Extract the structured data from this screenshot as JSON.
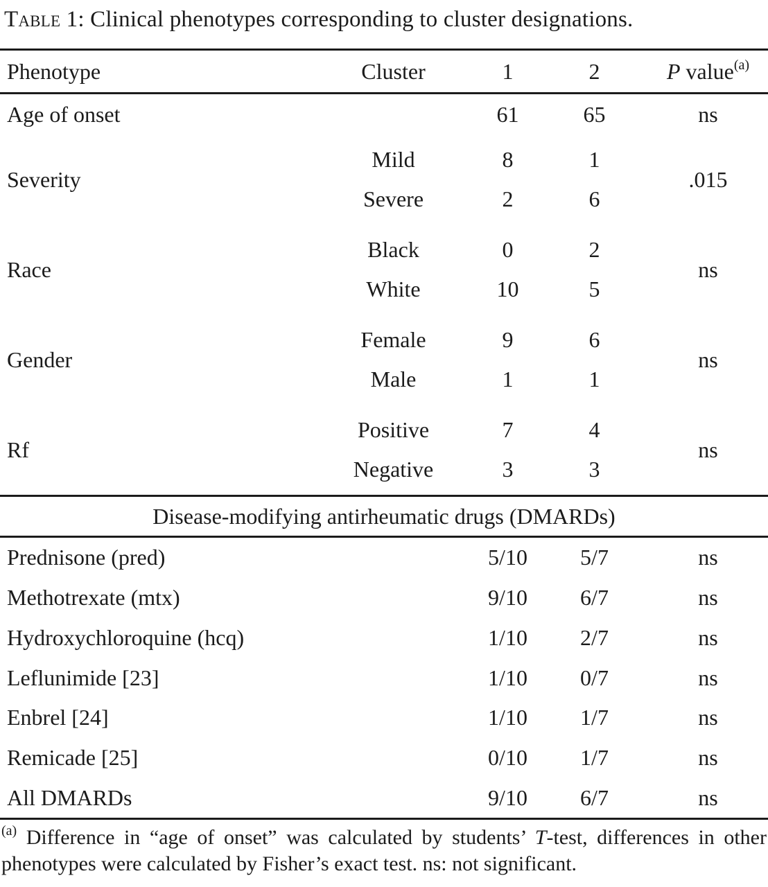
{
  "title": {
    "prefix": "Table 1:",
    "rest": " Clinical phenotypes corresponding to cluster designations."
  },
  "header": {
    "phenotype": "Phenotype",
    "cluster": "Cluster",
    "col1": "1",
    "col2": "2",
    "p_italic": "P",
    "p_rest": " value",
    "p_sup": "(a)"
  },
  "rows": {
    "age": {
      "phenotype": "Age of onset",
      "v1": "61",
      "v2": "65",
      "p": "ns"
    },
    "groups": [
      {
        "phenotype": "Severity",
        "sub1": {
          "label": "Mild",
          "v1": "8",
          "v2": "1"
        },
        "sub2": {
          "label": "Severe",
          "v1": "2",
          "v2": "6"
        },
        "p": ".015"
      },
      {
        "phenotype": "Race",
        "sub1": {
          "label": "Black",
          "v1": "0",
          "v2": "2"
        },
        "sub2": {
          "label": "White",
          "v1": "10",
          "v2": "5"
        },
        "p": "ns"
      },
      {
        "phenotype": "Gender",
        "sub1": {
          "label": "Female",
          "v1": "9",
          "v2": "6"
        },
        "sub2": {
          "label": "Male",
          "v1": "1",
          "v2": "1"
        },
        "p": "ns"
      },
      {
        "phenotype": "Rf",
        "sub1": {
          "label": "Positive",
          "v1": "7",
          "v2": "4"
        },
        "sub2": {
          "label": "Negative",
          "v1": "3",
          "v2": "3"
        },
        "p": "ns"
      }
    ],
    "section_header": "Disease-modifying antirheumatic drugs (DMARDs)",
    "dmards": [
      {
        "phenotype": "Prednisone (pred)",
        "v1": "5/10",
        "v2": "5/7",
        "p": "ns"
      },
      {
        "phenotype": "Methotrexate (mtx)",
        "v1": "9/10",
        "v2": "6/7",
        "p": "ns"
      },
      {
        "phenotype": "Hydroxychloroquine (hcq)",
        "v1": "1/10",
        "v2": "2/7",
        "p": "ns"
      },
      {
        "phenotype": "Leflunimide [23]",
        "v1": "1/10",
        "v2": "0/7",
        "p": "ns"
      },
      {
        "phenotype": "Enbrel [24]",
        "v1": "1/10",
        "v2": "1/7",
        "p": "ns"
      },
      {
        "phenotype": "Remicade [25]",
        "v1": "0/10",
        "v2": "1/7",
        "p": "ns"
      },
      {
        "phenotype": "All DMARDs",
        "v1": "9/10",
        "v2": "6/7",
        "p": "ns"
      }
    ]
  },
  "footnote": {
    "sup": "(a)",
    "before_t": " Difference in “age of onset” was calculated by students’ ",
    "t": "T",
    "after_t": "-test, differences in other phenotypes were calculated by Fisher’s exact test. ns: not significant."
  },
  "colors": {
    "text": "#1b1b1b",
    "rule": "#1b1b1b",
    "background": "#ffffff"
  }
}
